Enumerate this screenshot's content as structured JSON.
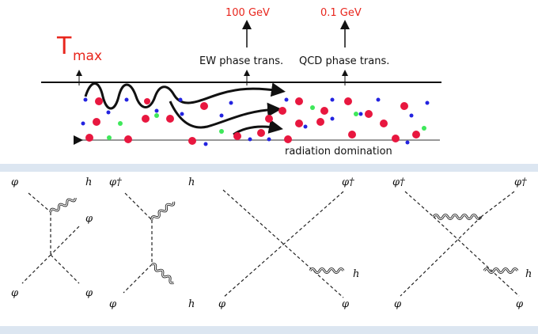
{
  "timeline": {
    "tmax_main": "T",
    "tmax_sub": "max",
    "ew_energy": "100 GeV",
    "qcd_energy": "0.1 GeV",
    "ew_label": "EW phase trans.",
    "qcd_label": "QCD phase trans.",
    "radiation_label": "radiation domination"
  },
  "colors": {
    "accent_red": "#e8261d",
    "particle_red": "#e8173f",
    "particle_blue": "#2323e0",
    "particle_green": "#3ee85a",
    "band": "#dce6f1"
  },
  "diagrams": [
    {
      "top_left": "φ",
      "top_right": "h",
      "middle_right": "φ",
      "bottom_left": "φ",
      "bottom_right": "φ"
    },
    {
      "top_left": "φ†",
      "top_right": "h",
      "bottom_left": "φ",
      "bottom_right": "h"
    },
    {
      "top_right": "φ†",
      "middle_right": "h",
      "bottom_left": "φ",
      "bottom_right": "φ"
    },
    {
      "top_left": "φ†",
      "top_right": "φ†",
      "middle_right": "h",
      "bottom_left": "φ",
      "bottom_right": "φ"
    }
  ]
}
